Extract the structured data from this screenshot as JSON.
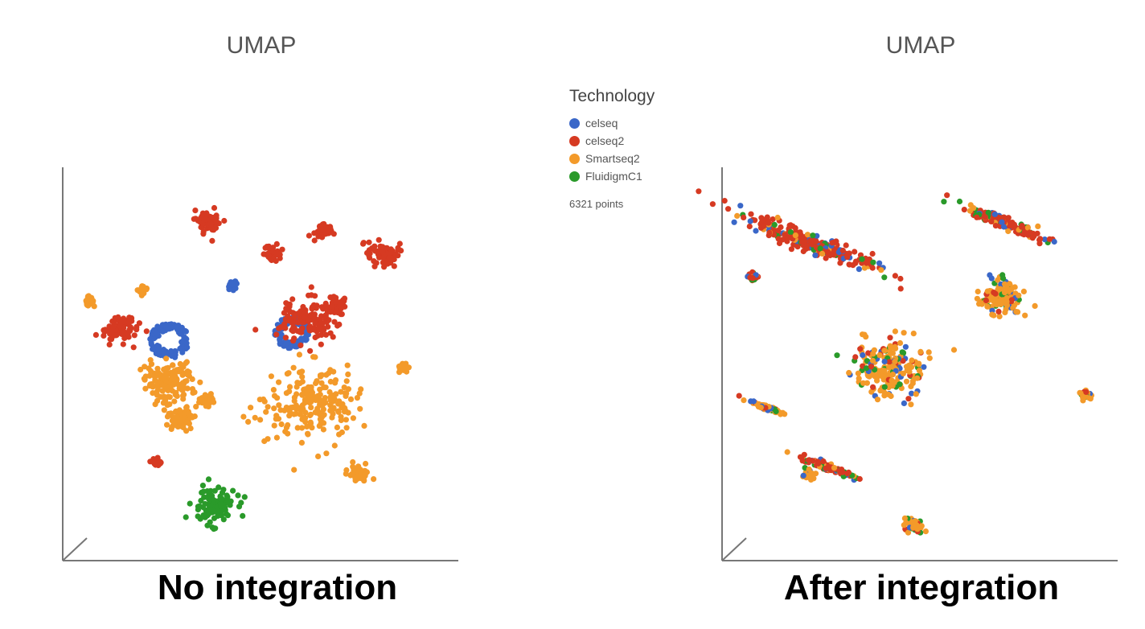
{
  "panels": [
    {
      "title": "UMAP",
      "caption": "No integration"
    },
    {
      "title": "UMAP",
      "caption": "After integration"
    }
  ],
  "legend": {
    "title": "Technology",
    "items": [
      {
        "label": "celseq",
        "color": "#3a67c8"
      },
      {
        "label": "celseq2",
        "color": "#d63a22"
      },
      {
        "label": "Smartseq2",
        "color": "#f39a2a"
      },
      {
        "label": "FluidigmC1",
        "color": "#2a9a2a"
      }
    ],
    "point_count": "6321 points"
  },
  "chart_data": [
    {
      "type": "scatter",
      "title": "UMAP",
      "caption": "No integration",
      "grid": false,
      "legend_position": "right",
      "series": [
        {
          "name": "celseq",
          "clusters": [
            {
              "x": 0.27,
              "y": 0.56,
              "spread": 0.05,
              "shape": "ring"
            },
            {
              "x": 0.58,
              "y": 0.58,
              "spread": 0.045,
              "shape": "ring"
            },
            {
              "x": 0.43,
              "y": 0.7,
              "spread": 0.012,
              "shape": "blob"
            }
          ]
        },
        {
          "name": "celseq2",
          "clusters": [
            {
              "x": 0.37,
              "y": 0.86,
              "spread": 0.03,
              "shape": "blob"
            },
            {
              "x": 0.53,
              "y": 0.78,
              "spread": 0.02,
              "shape": "blob"
            },
            {
              "x": 0.66,
              "y": 0.84,
              "spread": 0.02,
              "shape": "blob"
            },
            {
              "x": 0.81,
              "y": 0.78,
              "spread": 0.035,
              "shape": "blob"
            },
            {
              "x": 0.14,
              "y": 0.59,
              "spread": 0.04,
              "shape": "blob"
            },
            {
              "x": 0.62,
              "y": 0.61,
              "spread": 0.06,
              "shape": "blob"
            },
            {
              "x": 0.69,
              "y": 0.65,
              "spread": 0.025,
              "shape": "blob"
            },
            {
              "x": 0.24,
              "y": 0.25,
              "spread": 0.012,
              "shape": "blob"
            }
          ]
        },
        {
          "name": "Smartseq2",
          "clusters": [
            {
              "x": 0.2,
              "y": 0.69,
              "spread": 0.012,
              "shape": "blob"
            },
            {
              "x": 0.07,
              "y": 0.66,
              "spread": 0.012,
              "shape": "blob"
            },
            {
              "x": 0.27,
              "y": 0.45,
              "spread": 0.06,
              "shape": "blob"
            },
            {
              "x": 0.36,
              "y": 0.41,
              "spread": 0.018,
              "shape": "blob"
            },
            {
              "x": 0.3,
              "y": 0.36,
              "spread": 0.03,
              "shape": "blob"
            },
            {
              "x": 0.63,
              "y": 0.4,
              "spread": 0.1,
              "shape": "blob"
            },
            {
              "x": 0.86,
              "y": 0.49,
              "spread": 0.012,
              "shape": "blob"
            },
            {
              "x": 0.75,
              "y": 0.22,
              "spread": 0.025,
              "shape": "blob"
            }
          ]
        },
        {
          "name": "FluidigmC1",
          "clusters": [
            {
              "x": 0.38,
              "y": 0.14,
              "spread": 0.05,
              "shape": "blob"
            }
          ]
        }
      ]
    },
    {
      "type": "scatter",
      "title": "UMAP",
      "caption": "After integration",
      "grid": false,
      "legend_position": "left",
      "series_mix": [
        "celseq",
        "celseq2",
        "Smartseq2",
        "FluidigmC1"
      ],
      "clusters": [
        {
          "x": 0.22,
          "y": 0.81,
          "spread": 0.1,
          "shape": "elongated",
          "dominant": "celseq2"
        },
        {
          "x": 0.08,
          "y": 0.72,
          "spread": 0.012,
          "shape": "blob",
          "dominant": "celseq2"
        },
        {
          "x": 0.71,
          "y": 0.86,
          "spread": 0.06,
          "shape": "elongated",
          "dominant": "celseq2"
        },
        {
          "x": 0.7,
          "y": 0.67,
          "spread": 0.05,
          "shape": "blob",
          "dominant": "Smartseq2"
        },
        {
          "x": 0.42,
          "y": 0.49,
          "spread": 0.08,
          "shape": "blob",
          "dominant": "Smartseq2"
        },
        {
          "x": 0.92,
          "y": 0.42,
          "spread": 0.012,
          "shape": "blob",
          "dominant": "Smartseq2"
        },
        {
          "x": 0.11,
          "y": 0.39,
          "spread": 0.025,
          "shape": "elongated",
          "dominant": "Smartseq2"
        },
        {
          "x": 0.26,
          "y": 0.24,
          "spread": 0.04,
          "shape": "elongated",
          "dominant": "celseq2"
        },
        {
          "x": 0.22,
          "y": 0.22,
          "spread": 0.012,
          "shape": "blob",
          "dominant": "Smartseq2"
        },
        {
          "x": 0.48,
          "y": 0.09,
          "spread": 0.02,
          "shape": "blob",
          "dominant": "Smartseq2"
        }
      ]
    }
  ]
}
